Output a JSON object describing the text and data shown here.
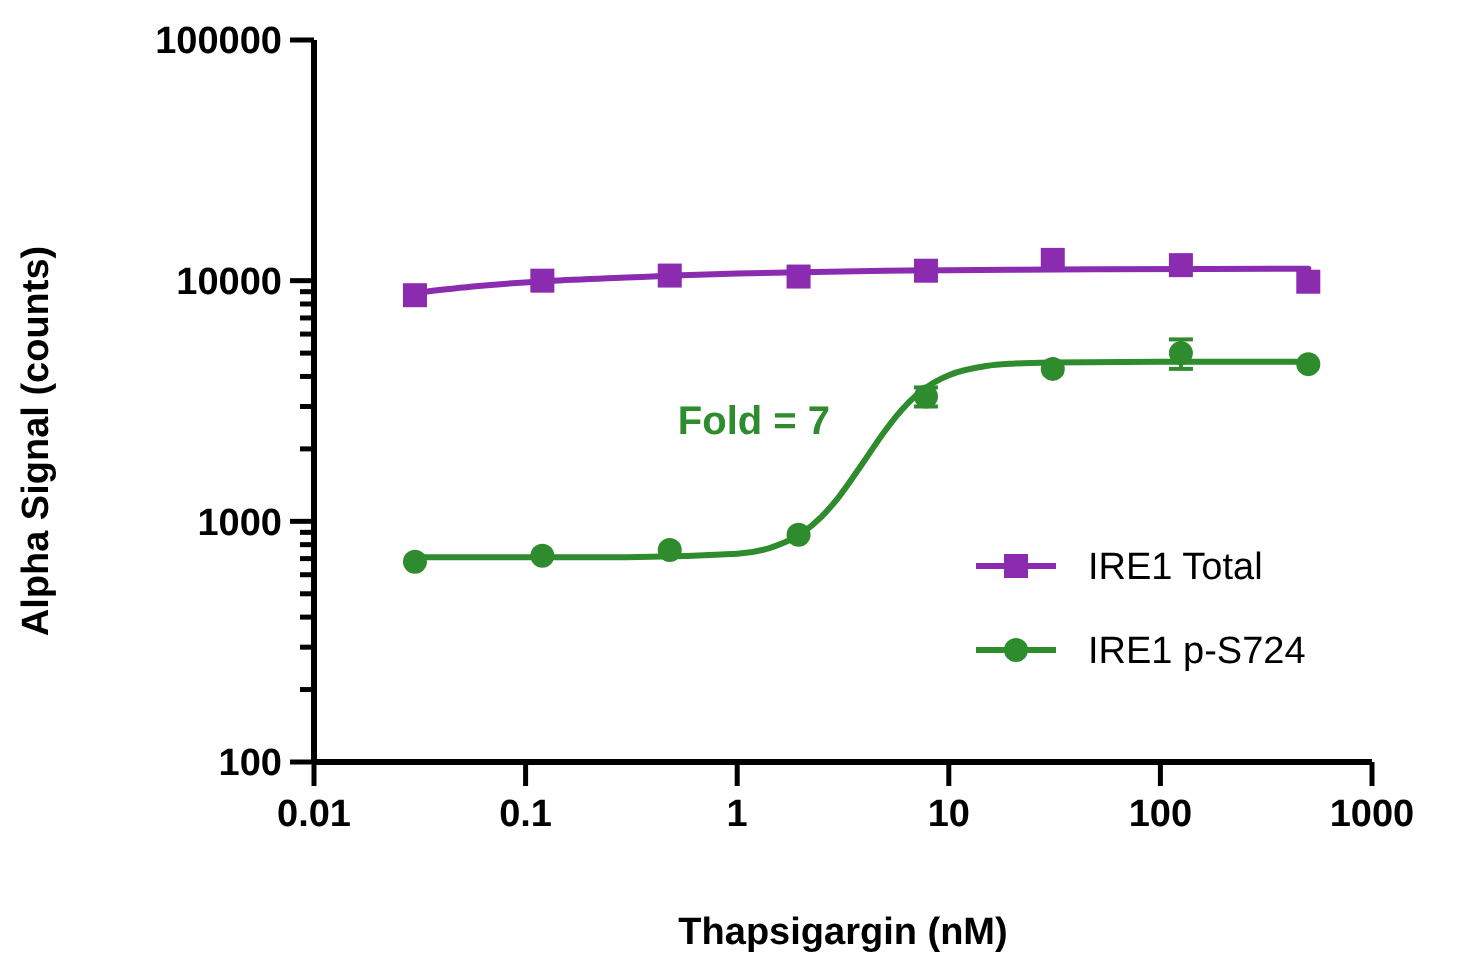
{
  "chart_data": {
    "type": "scatter",
    "xlabel": "Thapsigargin (nM)",
    "ylabel": "Alpha Signal (counts)",
    "log": "xy",
    "xlim": [
      0.01,
      1000
    ],
    "xticks": [
      0.01,
      0.1,
      1,
      10,
      100,
      1000
    ],
    "ylim": [
      100,
      100000
    ],
    "yticks": [
      100,
      {
        "value": 200,
        "label": null
      },
      {
        "value": 300,
        "label": null
      },
      {
        "value": 400,
        "label": null
      },
      {
        "value": 500,
        "label": null
      },
      {
        "value": 600,
        "label": null
      },
      {
        "value": 700,
        "label": null
      },
      {
        "value": 800,
        "label": null
      },
      {
        "value": 900,
        "label": null
      },
      1000,
      {
        "value": 2000,
        "label": null
      },
      {
        "value": 3000,
        "label": null
      },
      {
        "value": 4000,
        "label": null
      },
      {
        "value": 5000,
        "label": null
      },
      {
        "value": 6000,
        "label": null
      },
      {
        "value": 7000,
        "label": null
      },
      {
        "value": 8000,
        "label": null
      },
      {
        "value": 9000,
        "label": null
      },
      10000,
      100000
    ],
    "grid": false,
    "legend": "bottom right",
    "annotations": [
      "Fold = 7"
    ],
    "series": [
      {
        "type": "line",
        "color": "#8b2bb0",
        "marker": "none",
        "x": [
          0.03,
          0.06,
          0.12,
          0.3,
          0.5,
          1,
          2,
          5,
          10,
          50,
          500
        ],
        "values": [
          8900,
          9500,
          9950,
          10300,
          10500,
          10700,
          10850,
          11000,
          11050,
          11150,
          11200
        ]
      },
      {
        "type": "line",
        "color": "#2e8b2e",
        "marker": "none",
        "x": [
          0.03,
          0.3,
          1,
          1.5,
          2,
          2.5,
          3,
          4,
          5,
          6,
          7,
          8,
          10,
          15,
          20,
          30,
          100,
          500
        ],
        "values": [
          710,
          710,
          733,
          787,
          888,
          1044,
          1253,
          1791,
          2379,
          2908,
          3330,
          3646,
          4046,
          4418,
          4520,
          4572,
          4599,
          4600
        ]
      },
      {
        "name": "IRE1 Total",
        "color": "#8b2bb0",
        "marker": "square",
        "x": [
          0.03,
          0.12,
          0.48,
          1.95,
          7.8,
          31,
          125,
          500
        ],
        "values": [
          8700,
          10000,
          10500,
          10400,
          11000,
          12200,
          11600,
          9900
        ]
      },
      {
        "name": "IRE1 p-S724",
        "color": "#2e8b2e",
        "marker": "circle",
        "x": [
          0.03,
          0.12,
          0.48,
          1.95,
          7.8,
          31,
          125,
          500
        ],
        "values": [
          680,
          720,
          760,
          880,
          3300,
          4300,
          5000,
          4500
        ],
        "errors": [
          null,
          null,
          null,
          null,
          300,
          null,
          700,
          null
        ]
      }
    ]
  }
}
